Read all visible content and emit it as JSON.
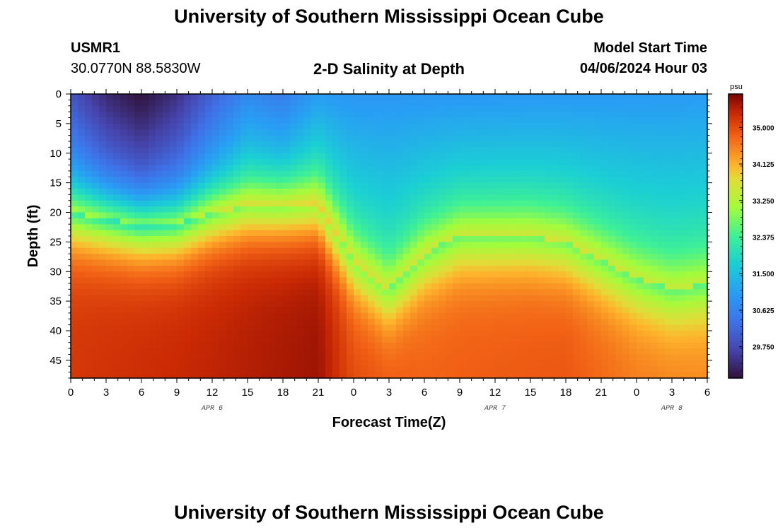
{
  "page": {
    "title_top": "University of Southern Mississippi Ocean Cube",
    "title_bottom": "University of Southern Mississippi Ocean Cube",
    "station_id": "USMR1",
    "station_coords": "30.0770N  88.5830W",
    "plot_title": "2-D Salinity at Depth",
    "model_start_label": "Model Start Time",
    "model_start_value": "04/06/2024 Hour 03"
  },
  "chart_data": {
    "type": "heatmap",
    "title": "2-D Salinity at Depth",
    "xlabel": "Forecast Time(Z)",
    "ylabel": "Depth (ft)",
    "x_hours": [
      0,
      3,
      6,
      9,
      12,
      15,
      18,
      21,
      24,
      27,
      30,
      33,
      36,
      39,
      42,
      45,
      48,
      51,
      54
    ],
    "x_tick_labels": [
      "0",
      "3",
      "6",
      "9",
      "12",
      "15",
      "18",
      "21",
      "0",
      "3",
      "6",
      "9",
      "12",
      "15",
      "18",
      "21",
      "0",
      "3",
      "6"
    ],
    "date_labels": [
      {
        "text": "APR 6",
        "hour": 12
      },
      {
        "text": "APR 7",
        "hour": 36
      },
      {
        "text": "APR 8",
        "hour": 51
      }
    ],
    "y_ticks": [
      0,
      5,
      10,
      15,
      20,
      25,
      30,
      35,
      40,
      45
    ],
    "ylim": [
      0,
      48
    ],
    "colorbar": {
      "unit": "psu",
      "min": 29.0,
      "max": 35.8,
      "ticks": [
        "35.000",
        "34.125",
        "33.250",
        "32.375",
        "31.500",
        "30.625",
        "29.750"
      ]
    },
    "fresh_layer_depth_ft": [
      {
        "hour": 0,
        "depth": 20
      },
      {
        "hour": 3,
        "depth": 21
      },
      {
        "hour": 6,
        "depth": 22
      },
      {
        "hour": 9,
        "depth": 22
      },
      {
        "hour": 12,
        "depth": 20
      },
      {
        "hour": 15,
        "depth": 19
      },
      {
        "hour": 18,
        "depth": 19
      },
      {
        "hour": 21,
        "depth": 19
      },
      {
        "hour": 24,
        "depth": 28
      },
      {
        "hour": 27,
        "depth": 33
      },
      {
        "hour": 30,
        "depth": 27
      },
      {
        "hour": 33,
        "depth": 24
      },
      {
        "hour": 36,
        "depth": 24
      },
      {
        "hour": 39,
        "depth": 24
      },
      {
        "hour": 42,
        "depth": 25
      },
      {
        "hour": 45,
        "depth": 28
      },
      {
        "hour": 48,
        "depth": 31
      },
      {
        "hour": 51,
        "depth": 33
      },
      {
        "hour": 54,
        "depth": 32
      }
    ],
    "surface_min_salinity": [
      {
        "hour": 0,
        "value": 29.9
      },
      {
        "hour": 3,
        "value": 29.3
      },
      {
        "hour": 6,
        "value": 29.0
      },
      {
        "hour": 9,
        "value": 29.4
      },
      {
        "hour": 12,
        "value": 30.1
      },
      {
        "hour": 15,
        "value": 30.7
      },
      {
        "hour": 18,
        "value": 30.5
      },
      {
        "hour": 21,
        "value": 31.0
      },
      {
        "hour": 24,
        "value": 30.9
      },
      {
        "hour": 54,
        "value": 31.0
      }
    ],
    "bottom_salinity": [
      {
        "hour": 0,
        "value": 35.2
      },
      {
        "hour": 12,
        "value": 35.4
      },
      {
        "hour": 21,
        "value": 35.6
      },
      {
        "hour": 24,
        "value": 35.0
      },
      {
        "hour": 30,
        "value": 34.8
      },
      {
        "hour": 42,
        "value": 34.9
      },
      {
        "hour": 48,
        "value": 34.6
      },
      {
        "hour": 54,
        "value": 34.5
      }
    ]
  }
}
